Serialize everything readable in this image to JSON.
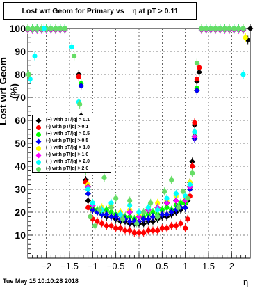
{
  "title": "Lost wrt Geom for Primary vs    η at pT > 0.11",
  "footer": "Tue May 15 10:10:28 2018",
  "chart_data": {
    "type": "scatter",
    "xlabel": "η",
    "ylabel": "Lost wrt Geom (%)",
    "xlim": [
      -2.4,
      2.4
    ],
    "ylim": [
      0,
      100
    ],
    "xticks": [
      "−2",
      "−1.5",
      "−1",
      "−0.5",
      "0",
      "0.5",
      "1",
      "1.5",
      "2"
    ],
    "xtick_values": [
      -2,
      -1.5,
      -1,
      -0.5,
      0,
      0.5,
      1,
      1.5,
      2
    ],
    "yticks": [
      "10",
      "20",
      "30",
      "40",
      "50",
      "60",
      "70",
      "80",
      "90",
      "100"
    ],
    "ytick_values": [
      10,
      20,
      30,
      40,
      50,
      60,
      70,
      80,
      90,
      100
    ],
    "grid": true,
    "legend_position": "center-left",
    "series": [
      {
        "name": "(+) with pT/|q| > 0.1",
        "color": "#000000",
        "marker": "diamond",
        "x": [
          -1.3,
          -1.25,
          -1.2,
          -1.15,
          -1.1,
          -1.05,
          -1.0,
          -0.9,
          -0.8,
          -0.7,
          -0.6,
          -0.5,
          -0.4,
          -0.3,
          -0.2,
          -0.1,
          0.0,
          0.1,
          0.2,
          0.3,
          0.4,
          0.5,
          0.6,
          0.7,
          0.8,
          0.9,
          1.0,
          1.05,
          1.1,
          1.15,
          1.2,
          1.25,
          1.3,
          2.35,
          2.4
        ],
        "y": [
          80,
          62,
          48,
          34,
          25,
          22,
          21,
          20,
          19,
          18,
          18,
          17,
          16,
          16,
          15,
          15,
          15,
          15,
          16,
          16,
          17,
          18,
          18,
          19,
          20,
          21,
          22,
          25,
          33,
          42,
          58,
          77,
          81,
          95,
          100
        ]
      },
      {
        "name": "(-) with pT/|q| > 0.1",
        "color": "#ff0000",
        "marker": "circle",
        "x": [
          -1.3,
          -1.25,
          -1.2,
          -1.15,
          -1.1,
          -1.05,
          -1.0,
          -0.9,
          -0.8,
          -0.7,
          -0.6,
          -0.5,
          -0.4,
          -0.3,
          -0.2,
          -0.1,
          0.0,
          0.1,
          0.2,
          0.3,
          0.4,
          0.5,
          0.6,
          0.7,
          0.8,
          0.9,
          1.0,
          1.05,
          1.1,
          1.15,
          1.2,
          1.25,
          1.3
        ],
        "y": [
          79,
          60,
          48,
          33,
          22,
          18,
          17,
          16,
          15,
          14,
          14,
          13,
          13,
          12,
          12,
          11,
          11,
          11,
          12,
          12,
          12,
          13,
          13,
          14,
          14,
          15,
          13,
          17,
          27,
          40,
          59,
          78,
          83
        ]
      },
      {
        "name": "(+) with pT/|q| > 0.5",
        "color": "#00ff00",
        "marker": "circle",
        "x": [
          -1.25,
          -1.2,
          -1.1,
          -1.0,
          -0.9,
          -0.8,
          -0.7,
          -0.6,
          -0.5,
          -0.4,
          -0.3,
          -0.2,
          -0.1,
          0.0,
          0.1,
          0.2,
          0.3,
          0.4,
          0.5,
          0.6,
          0.7,
          0.8,
          0.9,
          1.0,
          1.1,
          1.2,
          1.25
        ],
        "y": [
          76,
          45,
          30,
          22,
          21,
          20,
          21,
          20,
          19,
          19,
          18,
          18,
          17,
          18,
          18,
          19,
          20,
          19,
          21,
          22,
          21,
          23,
          24,
          24,
          32,
          53,
          74
        ]
      },
      {
        "name": "(-) with pT/|q| > 0.5",
        "color": "#0000ff",
        "marker": "diamond",
        "x": [
          -1.25,
          -1.2,
          -1.1,
          -1.0,
          -0.9,
          -0.8,
          -0.7,
          -0.6,
          -0.5,
          -0.4,
          -0.3,
          -0.2,
          -0.1,
          0.0,
          0.1,
          0.2,
          0.3,
          0.4,
          0.5,
          0.6,
          0.7,
          0.8,
          0.9,
          1.0,
          1.1,
          1.2,
          1.25
        ],
        "y": [
          75,
          44,
          28,
          21,
          20,
          19,
          19,
          18,
          18,
          17,
          17,
          16,
          16,
          16,
          17,
          17,
          18,
          18,
          19,
          19,
          20,
          21,
          22,
          22,
          30,
          52,
          73
        ]
      },
      {
        "name": "(+) with pT/|q| > 1.0",
        "color": "#ffff00",
        "marker": "circle",
        "x": [
          -1.2,
          -1.1,
          -1.0,
          -0.8,
          -0.6,
          -0.4,
          -0.2,
          0.0,
          0.2,
          0.4,
          0.6,
          0.8,
          1.0,
          1.1,
          1.2,
          2.3
        ],
        "y": [
          48,
          32,
          24,
          22,
          23,
          20,
          21,
          19,
          22,
          24,
          25,
          27,
          26,
          33,
          55,
          96
        ]
      },
      {
        "name": "(-) with pT/|q| > 1.0",
        "color": "#ff00ff",
        "marker": "diamond",
        "x": [
          -1.2,
          -1.1,
          -1.0,
          -0.8,
          -0.6,
          -0.4,
          -0.2,
          0.0,
          0.2,
          0.4,
          0.6,
          0.8,
          1.0,
          1.1,
          1.2
        ],
        "y": [
          46,
          31,
          23,
          21,
          22,
          19,
          20,
          18,
          21,
          22,
          24,
          25,
          25,
          31,
          53
        ]
      },
      {
        "name": "(+) with pT/|q| > 2.0",
        "color": "#00ffff",
        "marker": "circle",
        "x": [
          -2.35,
          -2.25,
          -2.05,
          -1.45,
          -1.3,
          -1.2,
          -1.1,
          -1.0,
          -0.8,
          -0.6,
          -0.4,
          -0.2,
          0.0,
          0.2,
          0.4,
          0.6,
          0.8,
          1.0,
          1.1,
          1.2,
          2.25
        ],
        "y": [
          78,
          88,
          100,
          92,
          68,
          44,
          30,
          24,
          21,
          24,
          19,
          23,
          20,
          22,
          21,
          26,
          28,
          27,
          32,
          55,
          80
        ]
      },
      {
        "name": "(-) with pT/|q| > 2.0",
        "color": "#66dd66",
        "marker": "circle",
        "x": [
          -2.38,
          -1.4,
          -1.28,
          -1.15,
          -1.05,
          -0.95,
          -0.85,
          -0.75,
          -0.6,
          -0.5,
          -0.35,
          -0.2,
          -0.05,
          0.1,
          0.25,
          0.4,
          0.55,
          0.7,
          0.85,
          0.95,
          1.05,
          1.15,
          1.25
        ],
        "y": [
          80,
          88,
          67,
          38,
          18,
          14,
          21,
          35,
          22,
          26,
          17,
          25,
          15,
          20,
          24,
          18,
          29,
          34,
          22,
          29,
          26,
          37,
          85
        ]
      }
    ],
    "plateau": {
      "left_x_range": [
        -2.4,
        -1.6
      ],
      "right_x_range": [
        1.35,
        2.25
      ],
      "value": 100
    }
  }
}
